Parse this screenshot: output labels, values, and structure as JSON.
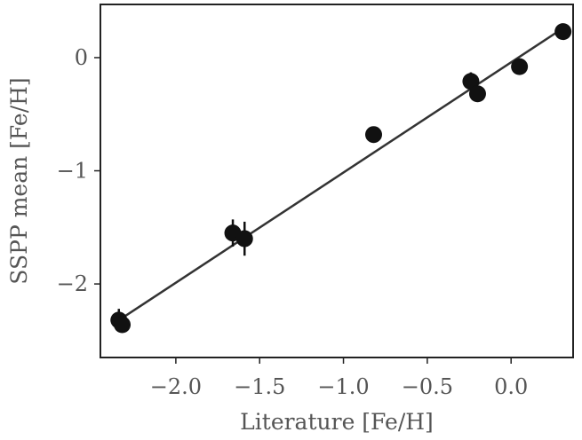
{
  "chart_data": {
    "type": "scatter",
    "title": "",
    "xlabel": "Literature [Fe/H]",
    "ylabel": "SSPP mean [Fe/H]",
    "xlim": [
      -2.45,
      0.37
    ],
    "ylim": [
      -2.65,
      0.47
    ],
    "xticks": [
      -2.0,
      -1.5,
      -1.0,
      -0.5,
      0.0
    ],
    "xtick_labels": [
      "−2.0",
      "−1.5",
      "−1.0",
      "−0.5",
      "0.0"
    ],
    "yticks": [
      -2,
      -1,
      0
    ],
    "ytick_labels": [
      "−2",
      "−1",
      "0"
    ],
    "grid": false,
    "legend": "none",
    "marker_color": "#111111",
    "line_color": "#333333",
    "fit_line": {
      "x": [
        -2.34,
        0.33
      ],
      "y": [
        -2.32,
        0.28
      ]
    },
    "points": [
      {
        "x": -2.34,
        "y": -2.32,
        "yerr": 0.1
      },
      {
        "x": -2.32,
        "y": -2.36,
        "yerr": 0.06
      },
      {
        "x": -1.66,
        "y": -1.55,
        "yerr": 0.12
      },
      {
        "x": -1.59,
        "y": -1.6,
        "yerr": 0.15
      },
      {
        "x": -0.82,
        "y": -0.68,
        "yerr": 0.05
      },
      {
        "x": -0.24,
        "y": -0.21,
        "yerr": 0.08
      },
      {
        "x": -0.2,
        "y": -0.32,
        "yerr": 0.06
      },
      {
        "x": 0.05,
        "y": -0.08,
        "yerr": 0.05
      },
      {
        "x": 0.31,
        "y": 0.23,
        "yerr": 0.06
      }
    ]
  }
}
